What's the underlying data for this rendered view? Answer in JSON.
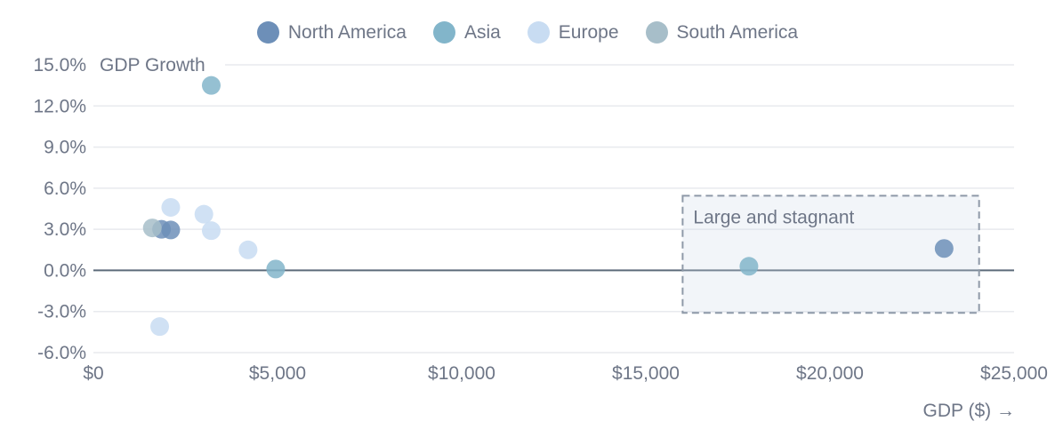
{
  "colors": {
    "axis_text": "#6e7687",
    "gridline": "#e8eaee",
    "zero_line": "#5d6b7a",
    "annotation_border": "#8e99a8",
    "annotation_fill": "rgba(202,214,231,0.25)"
  },
  "legend": {
    "items": [
      {
        "label": "North America",
        "color": "#6d8fb8"
      },
      {
        "label": "Asia",
        "color": "#82b5ca"
      },
      {
        "label": "Europe",
        "color": "#c8dcf2"
      },
      {
        "label": "South America",
        "color": "#a7bec9"
      }
    ]
  },
  "chart_data": {
    "type": "scatter",
    "title": "GDP Growth",
    "xlabel": "GDP ($) →",
    "ylabel": "GDP Growth",
    "xlim": [
      0,
      25000
    ],
    "ylim": [
      -6,
      15
    ],
    "grid": "horizontal-only",
    "legend_position": "top-center",
    "x_ticks": [
      {
        "value": 0,
        "label": "$0"
      },
      {
        "value": 5000,
        "label": "$5,000"
      },
      {
        "value": 10000,
        "label": "$10,000"
      },
      {
        "value": 15000,
        "label": "$15,000"
      },
      {
        "value": 20000,
        "label": "$20,000"
      },
      {
        "value": 25000,
        "label": "$25,000"
      }
    ],
    "y_ticks": [
      {
        "value": 15,
        "label": "15.0%"
      },
      {
        "value": 12,
        "label": "12.0%"
      },
      {
        "value": 9,
        "label": "9.0%"
      },
      {
        "value": 6,
        "label": "6.0%"
      },
      {
        "value": 3,
        "label": "3.0%"
      },
      {
        "value": 0,
        "label": "0.0%"
      },
      {
        "value": -3,
        "label": "-3.0%"
      },
      {
        "value": -6,
        "label": "-6.0%"
      }
    ],
    "series": [
      {
        "name": "North America",
        "color": "#6d8fb8",
        "points": [
          [
            1850,
            3.0
          ],
          [
            2100,
            2.95
          ],
          [
            23100,
            1.6
          ]
        ]
      },
      {
        "name": "Asia",
        "color": "#82b5ca",
        "points": [
          [
            3200,
            13.5
          ],
          [
            4950,
            0.1
          ],
          [
            17800,
            0.3
          ]
        ]
      },
      {
        "name": "Europe",
        "color": "#c8dcf2",
        "points": [
          [
            2100,
            4.6
          ],
          [
            3000,
            4.1
          ],
          [
            3200,
            2.9
          ],
          [
            4200,
            1.5
          ],
          [
            1800,
            -4.1
          ]
        ]
      },
      {
        "name": "South America",
        "color": "#a7bec9",
        "points": [
          [
            1600,
            3.1
          ]
        ]
      }
    ],
    "annotation": {
      "label": "Large and stagnant",
      "x_range": [
        16000,
        24050
      ],
      "y_range": [
        -3.1,
        5.45
      ]
    }
  }
}
